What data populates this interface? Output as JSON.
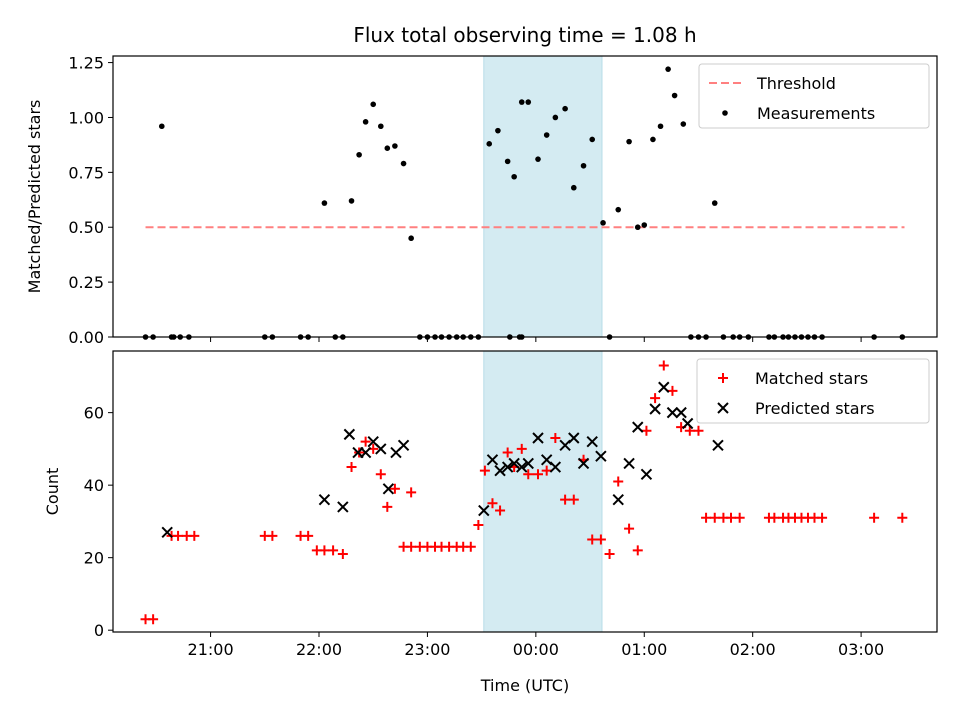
{
  "chart_data": [
    {
      "type": "scatter",
      "title": "Flux total observing time = 1.08 h",
      "ylabel": "Matched/Predicted stars",
      "xlabel": "",
      "x_unit": "hours relative to 00:00 UTC",
      "xlim": [
        -3.9,
        3.7
      ],
      "ylim": [
        0,
        1.28
      ],
      "x_ticks": [
        -3,
        -2,
        -1,
        0,
        1,
        2,
        3
      ],
      "x_tick_labels": [
        "21:00",
        "22:00",
        "23:00",
        "00:00",
        "01:00",
        "02:00",
        "03:00"
      ],
      "y_ticks": [
        0,
        0.25,
        0.5,
        0.75,
        1.0,
        1.25
      ],
      "y_tick_labels": [
        "0.00",
        "0.25",
        "0.50",
        "0.75",
        "1.00",
        "1.25"
      ],
      "highlight_span": [
        -0.48,
        0.61
      ],
      "highlight_color": "#d4ebf2",
      "legend": {
        "position": "top-right",
        "entries": [
          "Threshold",
          "Measurements"
        ]
      },
      "series": [
        {
          "name": "Threshold",
          "kind": "dashed-line",
          "color": "#ff8080",
          "x": [
            -3.6,
            3.4
          ],
          "y": [
            0.5,
            0.5
          ]
        },
        {
          "name": "Measurements",
          "kind": "dot",
          "color": "#000000",
          "x": [
            -3.6,
            -3.53,
            -3.36,
            -3.34,
            -3.28,
            -3.2,
            -2.5,
            -2.43,
            -2.17,
            -2.1,
            -1.95,
            -1.85,
            -1.78,
            -1.7,
            -1.63,
            -1.57,
            -1.5,
            -1.43,
            -1.37,
            -1.3,
            -1.22,
            -1.15,
            -1.07,
            -1.0,
            -0.93,
            -0.87,
            -0.8,
            -0.73,
            -0.67,
            -0.6,
            -0.53,
            -0.43,
            -0.35,
            -0.26,
            -0.24,
            -0.15,
            -0.2,
            -0.13,
            -0.13,
            -0.07,
            0.02,
            0.1,
            0.18,
            0.27,
            0.35,
            0.44,
            0.52,
            0.62,
            0.68,
            0.76,
            0.86,
            0.94,
            1.0,
            1.08,
            1.15,
            1.22,
            1.28,
            1.36,
            1.43,
            1.5,
            1.57,
            1.65,
            1.73,
            1.82,
            1.88,
            1.96,
            2.15,
            2.2,
            2.28,
            2.33,
            2.39,
            2.45,
            2.51,
            2.57,
            2.64,
            3.12,
            3.38,
            -3.45
          ],
          "y": [
            0,
            0,
            0,
            0,
            0,
            0,
            0,
            0,
            0,
            0,
            0.61,
            0,
            0,
            0.62,
            0.83,
            0.98,
            1.06,
            0.96,
            0.86,
            0.87,
            0.79,
            0.45,
            0,
            0,
            0,
            0,
            0,
            0,
            0,
            0,
            0,
            0.88,
            0.94,
            0.8,
            0,
            0,
            0.73,
            0,
            1.07,
            1.07,
            0.81,
            0.92,
            1.0,
            1.04,
            0.68,
            0.78,
            0.9,
            0.52,
            0,
            0.58,
            0.89,
            0.5,
            0.51,
            0.9,
            0.96,
            1.22,
            1.1,
            0.97,
            0,
            0,
            0,
            0.61,
            0,
            0,
            0,
            0,
            0,
            0,
            0,
            0,
            0,
            0,
            0,
            0,
            0,
            0,
            0,
            0.96
          ]
        }
      ]
    },
    {
      "type": "scatter",
      "title": "",
      "ylabel": "Count",
      "xlabel": "Time (UTC)",
      "x_unit": "hours relative to 00:00 UTC",
      "xlim": [
        -3.9,
        3.7
      ],
      "ylim": [
        -0.5,
        77
      ],
      "x_ticks": [
        -3,
        -2,
        -1,
        0,
        1,
        2,
        3
      ],
      "x_tick_labels": [
        "21:00",
        "22:00",
        "23:00",
        "00:00",
        "01:00",
        "02:00",
        "03:00"
      ],
      "y_ticks": [
        0,
        20,
        40,
        60
      ],
      "y_tick_labels": [
        "0",
        "20",
        "40",
        "60"
      ],
      "highlight_span": [
        -0.48,
        0.61
      ],
      "highlight_color": "#d4ebf2",
      "legend": {
        "position": "top-right",
        "entries": [
          "Matched stars",
          "Predicted stars"
        ]
      },
      "series": [
        {
          "name": "Matched stars",
          "kind": "plus",
          "color": "#ff0000",
          "x": [
            -3.6,
            -3.53,
            -3.36,
            -3.3,
            -3.22,
            -3.15,
            -2.5,
            -2.43,
            -2.17,
            -2.1,
            -2.02,
            -1.95,
            -1.87,
            -1.78,
            -1.7,
            -1.63,
            -1.57,
            -1.5,
            -1.43,
            -1.37,
            -1.3,
            -1.22,
            -1.15,
            -1.07,
            -1.0,
            -0.93,
            -0.87,
            -0.8,
            -0.73,
            -0.67,
            -0.6,
            -0.53,
            -0.47,
            -0.4,
            -0.33,
            -0.26,
            -0.13,
            -0.07,
            0.02,
            0.1,
            0.18,
            0.27,
            0.35,
            0.44,
            0.52,
            0.6,
            0.68,
            0.76,
            0.86,
            0.94,
            1.02,
            1.1,
            1.18,
            1.26,
            1.34,
            1.42,
            1.5,
            1.57,
            1.65,
            1.73,
            1.8,
            1.88,
            2.15,
            2.2,
            2.28,
            2.33,
            2.39,
            2.45,
            2.51,
            2.57,
            2.64,
            3.12,
            3.38,
            -0.2,
            -1.15
          ],
          "y": [
            3,
            3,
            26,
            26,
            26,
            26,
            26,
            26,
            26,
            26,
            22,
            22,
            22,
            21,
            45,
            49,
            52,
            50,
            43,
            34,
            39,
            23,
            23,
            23,
            23,
            23,
            23,
            23,
            23,
            23,
            23,
            29,
            44,
            35,
            33,
            49,
            50,
            43,
            43,
            44,
            53,
            36,
            36,
            47,
            25,
            25,
            21,
            41,
            28,
            22,
            55,
            64,
            73,
            66,
            56,
            55,
            55,
            31,
            31,
            31,
            31,
            31,
            31,
            31,
            31,
            31,
            31,
            31,
            31,
            31,
            31,
            31,
            31,
            45,
            38
          ]
        },
        {
          "name": "Predicted stars",
          "kind": "x",
          "color": "#000000",
          "x": [
            -3.4,
            -1.95,
            -1.78,
            -1.72,
            -1.64,
            -1.57,
            -1.5,
            -1.43,
            -1.36,
            -1.29,
            -1.22,
            -0.48,
            -0.4,
            -0.33,
            -0.26,
            -0.2,
            -0.13,
            -0.07,
            0.02,
            0.1,
            0.18,
            0.27,
            0.35,
            0.44,
            0.52,
            0.6,
            0.76,
            0.86,
            0.94,
            1.02,
            1.1,
            1.18,
            1.26,
            1.34,
            1.4,
            1.68
          ],
          "y": [
            27,
            36,
            34,
            54,
            49,
            49,
            52,
            50,
            39,
            49,
            51,
            33,
            47,
            44,
            45,
            46,
            45,
            46,
            53,
            47,
            45,
            51,
            53,
            46,
            52,
            48,
            36,
            46,
            56,
            43,
            61,
            67,
            60,
            60,
            57,
            51
          ]
        }
      ]
    }
  ]
}
